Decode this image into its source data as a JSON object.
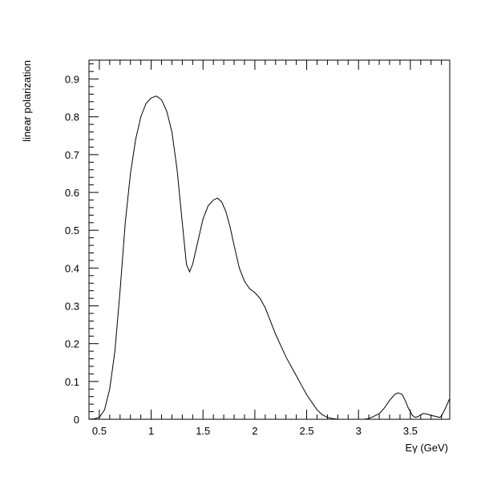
{
  "chart_data": {
    "type": "line",
    "xlabel": "Eγ (GeV)",
    "ylabel": "linear polarization",
    "xlim": [
      0.4,
      3.88
    ],
    "ylim": [
      0,
      0.95
    ],
    "x_ticks": [
      0.5,
      1,
      1.5,
      2,
      2.5,
      3,
      3.5
    ],
    "x_tick_labels": [
      "0.5",
      "1",
      "1.5",
      "2",
      "2.5",
      "3",
      "3.5"
    ],
    "y_ticks": [
      0,
      0.1,
      0.2,
      0.3,
      0.4,
      0.5,
      0.6,
      0.7,
      0.8,
      0.9
    ],
    "y_tick_labels": [
      "0",
      "0.1",
      "0.2",
      "0.3",
      "0.4",
      "0.5",
      "0.6",
      "0.7",
      "0.8",
      "0.9"
    ],
    "grid": false,
    "legend": "none",
    "series": [
      {
        "color": "#000000",
        "points": [
          [
            0.4,
            0.0
          ],
          [
            0.45,
            0.001
          ],
          [
            0.5,
            0.005
          ],
          [
            0.55,
            0.025
          ],
          [
            0.6,
            0.08
          ],
          [
            0.65,
            0.18
          ],
          [
            0.7,
            0.34
          ],
          [
            0.75,
            0.52
          ],
          [
            0.8,
            0.65
          ],
          [
            0.85,
            0.74
          ],
          [
            0.9,
            0.8
          ],
          [
            0.95,
            0.835
          ],
          [
            1.0,
            0.85
          ],
          [
            1.05,
            0.855
          ],
          [
            1.1,
            0.845
          ],
          [
            1.15,
            0.815
          ],
          [
            1.2,
            0.76
          ],
          [
            1.25,
            0.66
          ],
          [
            1.3,
            0.52
          ],
          [
            1.34,
            0.41
          ],
          [
            1.37,
            0.39
          ],
          [
            1.4,
            0.41
          ],
          [
            1.45,
            0.47
          ],
          [
            1.5,
            0.53
          ],
          [
            1.55,
            0.565
          ],
          [
            1.6,
            0.58
          ],
          [
            1.64,
            0.585
          ],
          [
            1.68,
            0.575
          ],
          [
            1.72,
            0.55
          ],
          [
            1.76,
            0.51
          ],
          [
            1.8,
            0.46
          ],
          [
            1.85,
            0.4
          ],
          [
            1.9,
            0.365
          ],
          [
            1.95,
            0.345
          ],
          [
            2.0,
            0.335
          ],
          [
            2.05,
            0.32
          ],
          [
            2.1,
            0.295
          ],
          [
            2.15,
            0.26
          ],
          [
            2.2,
            0.225
          ],
          [
            2.25,
            0.195
          ],
          [
            2.3,
            0.165
          ],
          [
            2.35,
            0.14
          ],
          [
            2.4,
            0.115
          ],
          [
            2.45,
            0.09
          ],
          [
            2.5,
            0.065
          ],
          [
            2.55,
            0.045
          ],
          [
            2.6,
            0.025
          ],
          [
            2.65,
            0.012
          ],
          [
            2.7,
            0.005
          ],
          [
            2.75,
            0.002
          ],
          [
            2.8,
            0.0
          ],
          [
            2.9,
            0.0
          ],
          [
            3.0,
            0.0
          ],
          [
            3.05,
            0.0
          ],
          [
            3.1,
            0.002
          ],
          [
            3.15,
            0.008
          ],
          [
            3.2,
            0.015
          ],
          [
            3.25,
            0.03
          ],
          [
            3.3,
            0.05
          ],
          [
            3.35,
            0.066
          ],
          [
            3.38,
            0.07
          ],
          [
            3.42,
            0.066
          ],
          [
            3.45,
            0.05
          ],
          [
            3.48,
            0.03
          ],
          [
            3.52,
            0.01
          ],
          [
            3.55,
            0.005
          ],
          [
            3.58,
            0.008
          ],
          [
            3.62,
            0.015
          ],
          [
            3.66,
            0.014
          ],
          [
            3.7,
            0.01
          ],
          [
            3.74,
            0.008
          ],
          [
            3.78,
            0.005
          ],
          [
            3.8,
            0.008
          ],
          [
            3.84,
            0.03
          ],
          [
            3.88,
            0.055
          ]
        ]
      }
    ]
  }
}
